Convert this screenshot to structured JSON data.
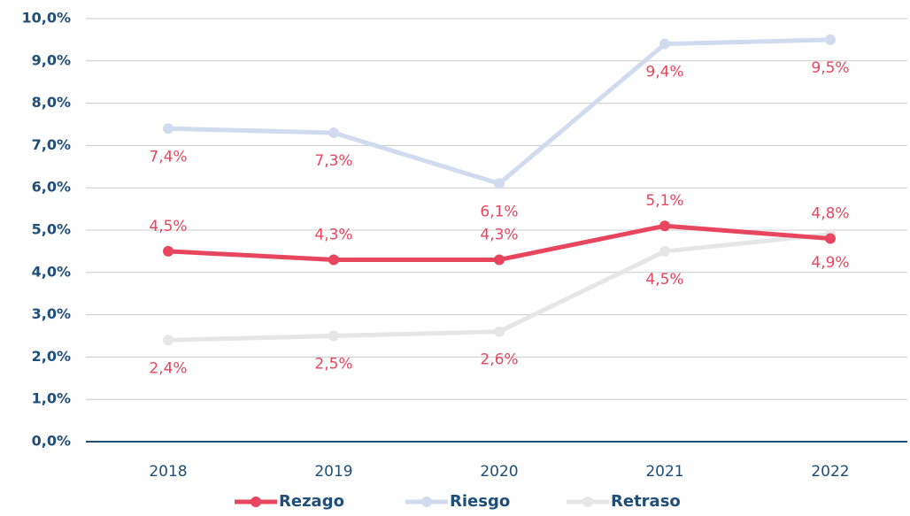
{
  "chart_data": {
    "type": "line",
    "categories": [
      "2018",
      "2019",
      "2020",
      "2021",
      "2022"
    ],
    "series": [
      {
        "name": "Rezago",
        "color": "#e8455e",
        "values": [
          4.5,
          4.3,
          4.3,
          5.1,
          4.8
        ],
        "value_labels": [
          "4,5%",
          "4,3%",
          "4,3%",
          "5,1%",
          "4,8%"
        ]
      },
      {
        "name": "Riesgo",
        "color": "#d0dbef",
        "values": [
          7.4,
          7.3,
          6.1,
          9.4,
          9.5
        ],
        "value_labels": [
          "7,4%",
          "7,3%",
          "6,1%",
          "9,4%",
          "9,5%"
        ]
      },
      {
        "name": "Retraso",
        "color": "#e6e6e6",
        "values": [
          2.4,
          2.5,
          2.6,
          4.5,
          4.9
        ],
        "value_labels": [
          "2,4%",
          "2,5%",
          "2,6%",
          "4,5%",
          "4,9%"
        ]
      }
    ],
    "ylim": [
      0,
      10
    ],
    "yticks": [
      {
        "value": 0,
        "label": "0,0%"
      },
      {
        "value": 1,
        "label": "1,0%"
      },
      {
        "value": 2,
        "label": "2,0%"
      },
      {
        "value": 3,
        "label": "3,0%"
      },
      {
        "value": 4,
        "label": "4,0%"
      },
      {
        "value": 5,
        "label": "5,0%"
      },
      {
        "value": 6,
        "label": "6,0%"
      },
      {
        "value": 7,
        "label": "7,0%"
      },
      {
        "value": 8,
        "label": "8,0%"
      },
      {
        "value": 9,
        "label": "9,0%"
      },
      {
        "value": 10,
        "label": "10,0%"
      }
    ],
    "grid": true,
    "legend": "bottom",
    "value_label_color": "#e8455e"
  }
}
